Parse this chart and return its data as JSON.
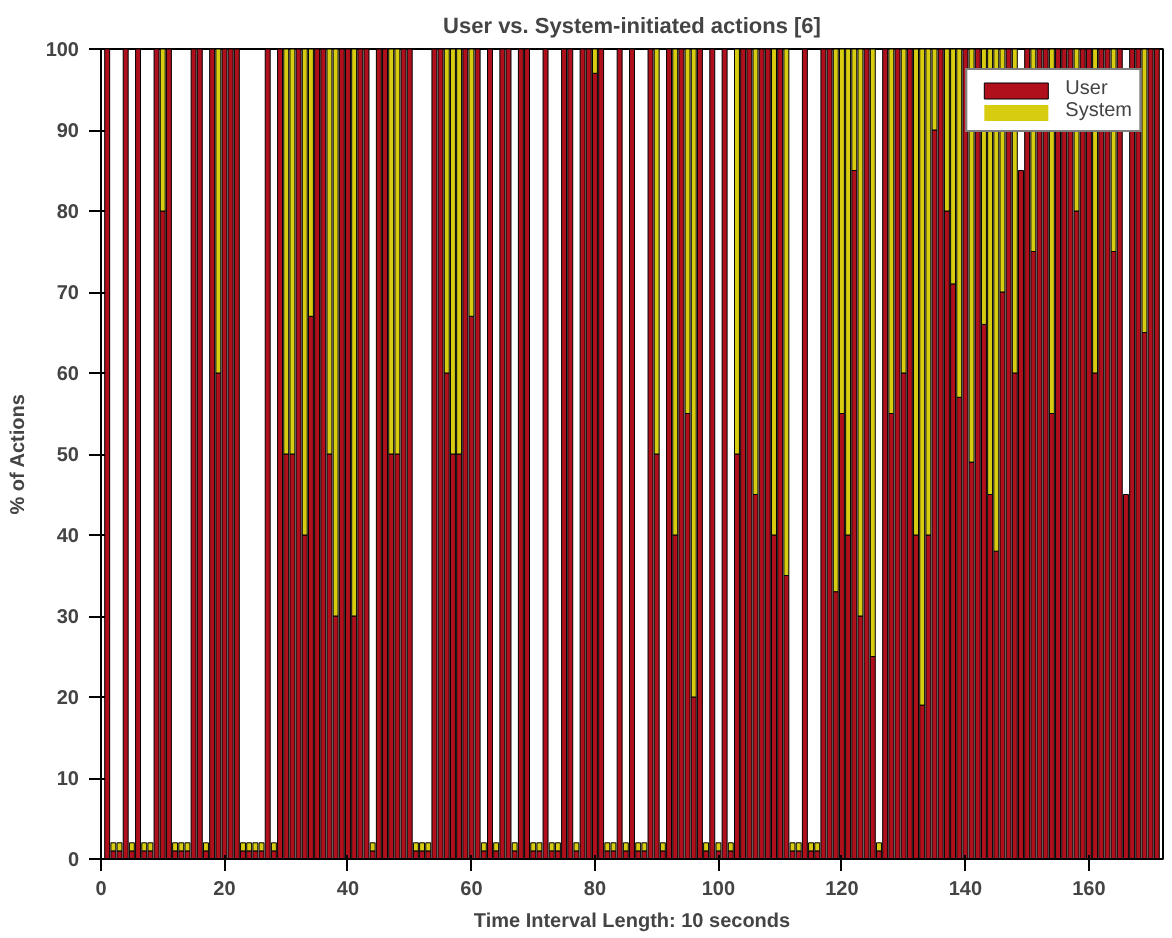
{
  "chart_data": {
    "type": "bar",
    "stacked": true,
    "title": "User vs. System-initiated actions [6]",
    "xlabel": "Time Interval Length: 10 seconds",
    "ylabel": "% of Actions",
    "x": [
      1,
      2,
      3,
      4,
      5,
      6,
      7,
      8,
      9,
      10,
      11,
      12,
      13,
      14,
      15,
      16,
      17,
      18,
      19,
      20,
      21,
      22,
      23,
      24,
      25,
      26,
      27,
      28,
      29,
      30,
      31,
      32,
      33,
      34,
      35,
      36,
      37,
      38,
      39,
      40,
      41,
      42,
      43,
      44,
      45,
      46,
      47,
      48,
      49,
      50,
      51,
      52,
      53,
      54,
      55,
      56,
      57,
      58,
      59,
      60,
      61,
      62,
      63,
      64,
      65,
      66,
      67,
      68,
      69,
      70,
      71,
      72,
      73,
      74,
      75,
      76,
      77,
      78,
      79,
      80,
      81,
      82,
      83,
      84,
      85,
      86,
      87,
      88,
      89,
      90,
      91,
      92,
      93,
      94,
      95,
      96,
      97,
      98,
      99,
      100,
      101,
      102,
      103,
      104,
      105,
      106,
      107,
      108,
      109,
      110,
      111,
      112,
      113,
      114,
      115,
      116,
      117,
      118,
      119,
      120,
      121,
      122,
      123,
      124,
      125,
      126,
      127,
      128,
      129,
      130,
      131,
      132,
      133,
      134,
      135,
      136,
      137,
      138,
      139,
      140,
      141,
      142,
      143,
      144,
      145,
      146,
      147,
      148,
      149,
      150,
      151,
      152,
      153,
      154,
      155,
      156,
      157,
      158,
      159,
      160,
      161,
      162,
      163,
      164,
      165,
      166,
      167,
      168,
      169,
      170,
      171
    ],
    "series": [
      {
        "name": "User",
        "color": "#b0101c",
        "values": [
          100,
          1,
          1,
          100,
          1,
          100,
          1,
          1,
          100,
          80,
          100,
          1,
          1,
          1,
          100,
          100,
          1,
          100,
          60,
          100,
          100,
          100,
          1,
          1,
          1,
          1,
          100,
          1,
          100,
          50,
          50,
          100,
          40,
          67,
          100,
          100,
          50,
          30,
          100,
          100,
          30,
          100,
          100,
          1,
          100,
          100,
          50,
          50,
          100,
          100,
          1,
          1,
          1,
          100,
          100,
          60,
          50,
          50,
          100,
          67,
          100,
          1,
          100,
          1,
          100,
          100,
          1,
          100,
          100,
          1,
          1,
          100,
          1,
          1,
          100,
          100,
          1,
          100,
          100,
          97,
          100,
          1,
          1,
          100,
          1,
          100,
          1,
          1,
          100,
          50,
          1,
          100,
          40,
          100,
          55,
          20,
          100,
          1,
          100,
          1,
          100,
          1,
          50,
          100,
          100,
          45,
          100,
          100,
          40,
          100,
          35,
          1,
          1,
          100,
          1,
          1,
          100,
          100,
          33,
          55,
          40,
          85,
          30,
          100,
          25,
          1,
          100,
          55,
          100,
          60,
          100,
          40,
          19,
          40,
          90,
          100,
          80,
          71,
          57,
          100,
          49,
          100,
          66,
          45,
          38,
          70,
          100,
          60,
          85,
          100,
          75,
          100,
          100,
          55,
          100,
          100,
          100,
          80,
          100,
          100,
          60,
          100,
          100,
          75,
          100,
          45,
          100,
          100,
          65,
          100,
          100
        ]
      },
      {
        "name": "System",
        "color": "#d8cc10",
        "values": [
          0,
          1,
          1,
          0,
          1,
          0,
          1,
          1,
          0,
          20,
          0,
          1,
          1,
          1,
          0,
          0,
          1,
          0,
          40,
          0,
          0,
          0,
          1,
          1,
          1,
          1,
          0,
          1,
          0,
          50,
          50,
          0,
          60,
          33,
          0,
          0,
          50,
          70,
          0,
          0,
          70,
          0,
          0,
          1,
          0,
          0,
          50,
          50,
          0,
          0,
          1,
          1,
          1,
          0,
          0,
          40,
          50,
          50,
          0,
          33,
          0,
          1,
          0,
          1,
          0,
          0,
          1,
          0,
          0,
          1,
          1,
          0,
          1,
          1,
          0,
          0,
          1,
          0,
          0,
          3,
          0,
          1,
          1,
          0,
          1,
          0,
          1,
          1,
          0,
          50,
          1,
          0,
          60,
          0,
          45,
          80,
          0,
          1,
          0,
          1,
          0,
          1,
          50,
          0,
          0,
          55,
          0,
          0,
          60,
          0,
          65,
          1,
          1,
          0,
          1,
          1,
          0,
          0,
          67,
          45,
          60,
          15,
          70,
          0,
          75,
          1,
          0,
          45,
          0,
          40,
          0,
          60,
          81,
          60,
          10,
          0,
          20,
          29,
          43,
          0,
          51,
          0,
          34,
          55,
          62,
          30,
          0,
          40,
          null,
          0,
          25,
          0,
          0,
          45,
          0,
          0,
          0,
          20,
          0,
          0,
          40,
          0,
          0,
          25,
          0,
          0,
          0,
          0,
          35,
          0,
          0
        ]
      }
    ],
    "xlim": [
      0,
      172
    ],
    "xticks": [
      0,
      20,
      40,
      60,
      80,
      100,
      120,
      140,
      160
    ],
    "ylim": [
      0,
      100
    ],
    "yticks": [
      0,
      10,
      20,
      30,
      40,
      50,
      60,
      70,
      80,
      90,
      100
    ],
    "legend": "top right"
  }
}
